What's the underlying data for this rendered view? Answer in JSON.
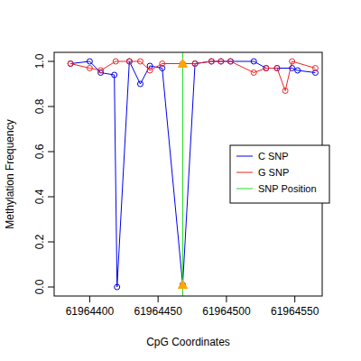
{
  "chart_data": {
    "type": "line",
    "x_label": "CpG Coordinates",
    "y_label": "Methylation Frequency",
    "xlim": [
      61964374,
      61964570
    ],
    "ylim": [
      -0.04,
      1.04
    ],
    "xticks": [
      61964400,
      61964450,
      61964500,
      61964550
    ],
    "yticks": [
      {
        "value": 0,
        "label": "0.0"
      },
      0.2,
      0.4,
      0.6,
      0.8,
      {
        "value": 1,
        "label": "1.0"
      }
    ],
    "legend": "right",
    "marker": "circle",
    "series": [
      {
        "name": "C SNP",
        "color": "#0000ee",
        "x": [
          61964386,
          61964400,
          61964408,
          61964418,
          61964420,
          61964429,
          61964437,
          61964444,
          61964453,
          61964468,
          61964477,
          61964489,
          61964496,
          61964503,
          61964520,
          61964529,
          61964537,
          61964548,
          61964552,
          61964565
        ],
        "values": [
          0.99,
          1.0,
          0.95,
          0.94,
          0.0,
          1.0,
          0.9,
          0.98,
          0.97,
          0.01,
          0.99,
          1.0,
          1.0,
          1.0,
          1.0,
          0.97,
          0.97,
          0.97,
          0.96,
          0.95
        ]
      },
      {
        "name": "G SNP",
        "color": "#ee2222",
        "x": [
          61964386,
          61964400,
          61964408,
          61964419,
          61964429,
          61964437,
          61964444,
          61964453,
          61964468,
          61964477,
          61964489,
          61964496,
          61964503,
          61964520,
          61964529,
          61964537,
          61964543,
          61964548,
          61964565
        ],
        "values": [
          0.99,
          0.97,
          0.96,
          1.0,
          1.0,
          1.0,
          0.96,
          0.99,
          0.99,
          0.99,
          1.0,
          1.0,
          1.0,
          0.95,
          0.97,
          0.97,
          0.87,
          1.0,
          0.97
        ]
      }
    ],
    "annotations": [
      {
        "label": "SNP Position",
        "x": 61964468,
        "color": "#22dd22"
      }
    ]
  }
}
